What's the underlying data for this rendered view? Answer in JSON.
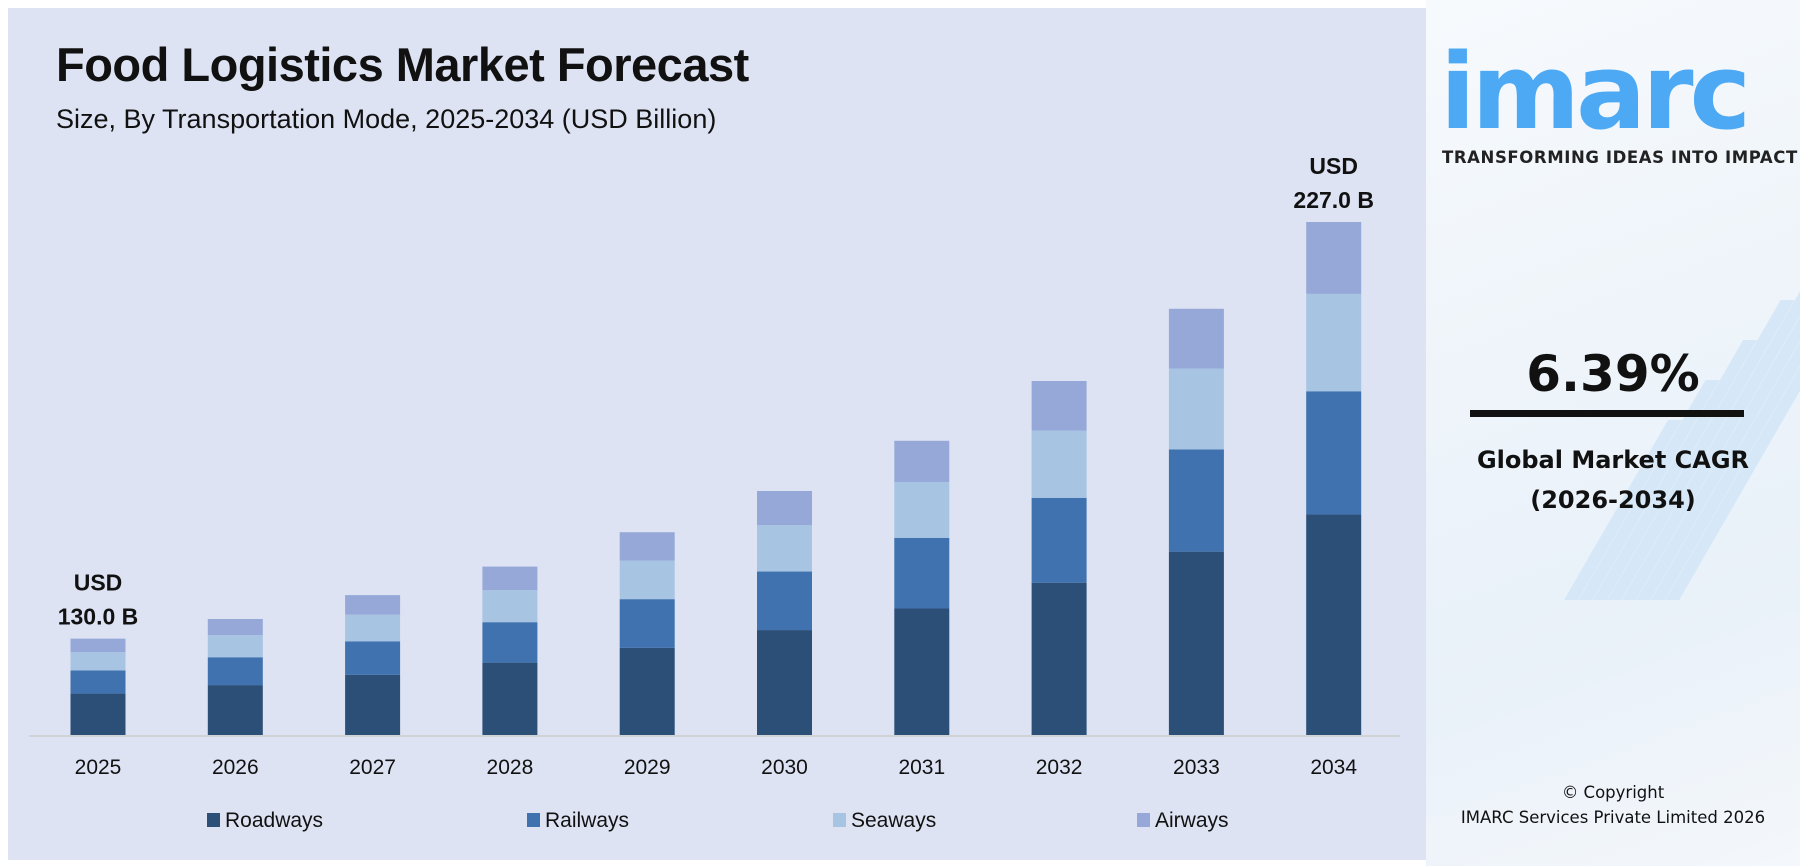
{
  "header": {
    "title": "Food Logistics Market Forecast",
    "subtitle": "Size, By Transportation Mode, 2025-2034 (USD Billion)"
  },
  "brand": {
    "logo_text": "imarc",
    "tagline": "TRANSFORMING IDEAS INTO IMPACT",
    "logo_color": "#4ea9f4"
  },
  "cagr": {
    "value": "6.39%",
    "label_line1": "Global Market CAGR",
    "label_line2": "(2026-2034)"
  },
  "copyright": {
    "line1": "© Copyright",
    "line2": "IMARC Services Private Limited 2026"
  },
  "chart_data": {
    "type": "bar",
    "stacked": true,
    "title": "Food Logistics Market Forecast",
    "subtitle": "Size, By Transportation Mode, 2025-2034 (USD Billion)",
    "xlabel": "",
    "ylabel": "",
    "grid": false,
    "legend_position": "bottom",
    "categories": [
      "2025",
      "2026",
      "2027",
      "2028",
      "2029",
      "2030",
      "2031",
      "2032",
      "2033",
      "2034"
    ],
    "totals": [
      130.0,
      138.3,
      147.2,
      156.6,
      166.6,
      177.2,
      188.6,
      200.6,
      213.4,
      227.0
    ],
    "series": [
      {
        "name": "Roadways",
        "color": "#2c4f78",
        "values": [
          55.9,
          59.5,
          63.3,
          67.3,
          71.6,
          76.2,
          81.1,
          86.3,
          91.8,
          97.6
        ]
      },
      {
        "name": "Railways",
        "color": "#3f72ae",
        "values": [
          31.2,
          33.2,
          35.3,
          37.6,
          40.0,
          42.5,
          45.3,
          48.1,
          51.2,
          54.5
        ]
      },
      {
        "name": "Seaways",
        "color": "#a8c4e3",
        "values": [
          24.7,
          26.3,
          28.0,
          29.8,
          31.7,
          33.7,
          35.8,
          38.1,
          40.5,
          43.1
        ]
      },
      {
        "name": "Airways",
        "color": "#96a8d8",
        "values": [
          18.2,
          19.3,
          20.6,
          21.9,
          23.3,
          24.8,
          26.4,
          28.1,
          29.9,
          31.8
        ]
      }
    ],
    "annotations": [
      {
        "category": "2025",
        "line1": "USD",
        "line2": "130.0 B"
      },
      {
        "category": "2034",
        "line1": "USD",
        "line2": "227.0 B"
      }
    ]
  }
}
